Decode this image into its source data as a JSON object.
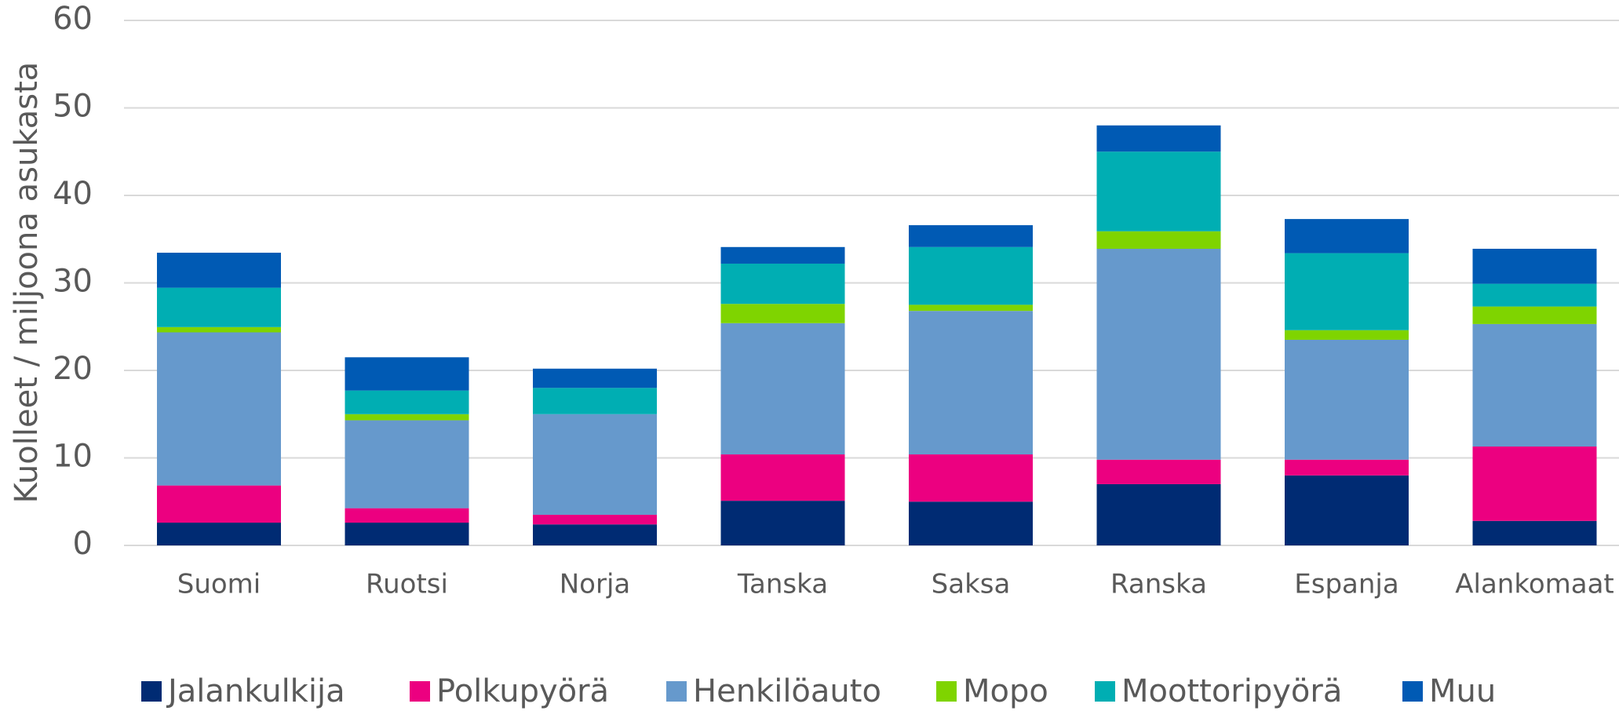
{
  "chart_data": {
    "type": "stacked_bar",
    "y_axis_label": "Kuolleet / miljoona asukasta",
    "categories": [
      "Suomi",
      "Ruotsi",
      "Norja",
      "Tanska",
      "Saksa",
      "Ranska",
      "Espanja",
      "Alankomaat"
    ],
    "series": [
      {
        "name": "Jalankulkija",
        "color": "#002b73",
        "values": [
          2.6,
          2.6,
          2.4,
          5.1,
          5.0,
          7.0,
          8.0,
          2.8
        ]
      },
      {
        "name": "Polkupyörä",
        "color": "#ec0080",
        "values": [
          4.25,
          1.65,
          1.1,
          5.3,
          5.4,
          2.8,
          1.8,
          8.5
        ]
      },
      {
        "name": "Henkilöauto",
        "color": "#6699cc",
        "values": [
          17.5,
          10.05,
          11.5,
          15.0,
          16.4,
          24.1,
          13.7,
          14.0
        ]
      },
      {
        "name": "Mopo",
        "color": "#7fd400",
        "values": [
          0.6,
          0.7,
          0,
          2.2,
          0.7,
          2.0,
          1.1,
          2.0
        ]
      },
      {
        "name": "Moottoripyörä",
        "color": "#00aeb3",
        "values": [
          4.5,
          2.7,
          3.0,
          4.6,
          6.6,
          9.1,
          8.8,
          2.6
        ]
      },
      {
        "name": "Muu",
        "color": "#005ab4",
        "values": [
          4.0,
          3.8,
          2.2,
          1.9,
          2.5,
          3.0,
          3.9,
          4.0
        ]
      }
    ],
    "ylim": [
      0,
      60
    ],
    "yticks": [
      0,
      10,
      20,
      30,
      40,
      50,
      60
    ],
    "grid": true,
    "legend": "bottom"
  }
}
